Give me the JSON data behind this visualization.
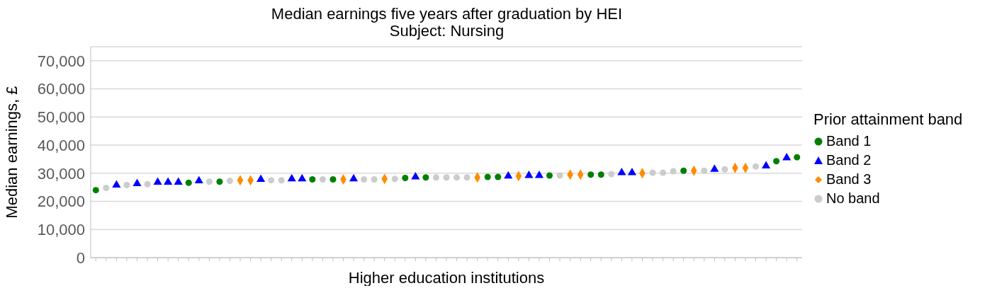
{
  "chart_data": {
    "type": "scatter",
    "title": "Median earnings five years after graduation by HEI",
    "subtitle": "Subject: Nursing",
    "xlabel": "Higher education institutions",
    "ylabel": "Median earnings, £",
    "legend_title": "Prior attainment band",
    "legend": "right",
    "grid": "y",
    "ylim": [
      0,
      75000
    ],
    "yticks": [
      {
        "value": 0,
        "label": "0"
      },
      {
        "value": 10000,
        "label": "10,000"
      },
      {
        "value": 20000,
        "label": "20,000"
      },
      {
        "value": 30000,
        "label": "30,000"
      },
      {
        "value": 40000,
        "label": "40,000"
      },
      {
        "value": 50000,
        "label": "50,000"
      },
      {
        "value": 60000,
        "label": "60,000"
      },
      {
        "value": 70000,
        "label": "70,000"
      }
    ],
    "categories": [
      null,
      null,
      null,
      null,
      null,
      null,
      null,
      null,
      null,
      null,
      null,
      null,
      null,
      null,
      null,
      null,
      null,
      null,
      null,
      null,
      null,
      null,
      null,
      null,
      null,
      null,
      null,
      null,
      null,
      null,
      null,
      null,
      null,
      null,
      null,
      null,
      null,
      null,
      null,
      null,
      null,
      null,
      null,
      null,
      null,
      null,
      null,
      null,
      null,
      null,
      null,
      null,
      null,
      null,
      null,
      null,
      null,
      null,
      null,
      null,
      null,
      null,
      null,
      null,
      null,
      null,
      null,
      null,
      null
    ],
    "series": [
      {
        "name": "Band 1",
        "color": "#008000",
        "marker": "circle",
        "values": [
          24000,
          null,
          null,
          null,
          null,
          null,
          null,
          null,
          null,
          26600,
          null,
          null,
          27000,
          null,
          null,
          null,
          null,
          null,
          null,
          null,
          null,
          27800,
          null,
          27800,
          null,
          null,
          null,
          null,
          null,
          null,
          28300,
          null,
          28500,
          null,
          null,
          null,
          null,
          null,
          28700,
          28700,
          null,
          null,
          null,
          null,
          29200,
          null,
          null,
          null,
          29500,
          29500,
          null,
          null,
          null,
          null,
          null,
          null,
          null,
          30900,
          null,
          null,
          null,
          null,
          null,
          null,
          null,
          null,
          34300,
          null,
          35700
        ]
      },
      {
        "name": "Band 2",
        "color": "#0000ff",
        "marker": "triangle",
        "values": [
          null,
          null,
          25800,
          null,
          26300,
          null,
          26800,
          26800,
          26800,
          null,
          27300,
          null,
          null,
          null,
          null,
          null,
          27800,
          null,
          null,
          28000,
          28000,
          null,
          null,
          null,
          null,
          28000,
          null,
          null,
          null,
          null,
          null,
          28700,
          null,
          null,
          null,
          null,
          null,
          null,
          null,
          null,
          29000,
          null,
          29200,
          29200,
          null,
          null,
          null,
          null,
          null,
          null,
          null,
          30200,
          30200,
          null,
          null,
          null,
          null,
          null,
          null,
          null,
          31400,
          null,
          null,
          null,
          null,
          32600,
          null,
          35500,
          null
        ]
      },
      {
        "name": "Band 3",
        "color": "#ff8c00",
        "marker": "diamond",
        "values": [
          null,
          null,
          null,
          null,
          null,
          null,
          null,
          null,
          null,
          null,
          null,
          null,
          null,
          null,
          27500,
          27500,
          null,
          null,
          null,
          null,
          null,
          null,
          null,
          null,
          27800,
          null,
          null,
          null,
          28000,
          null,
          null,
          null,
          null,
          null,
          null,
          null,
          null,
          28500,
          null,
          null,
          null,
          29000,
          null,
          null,
          null,
          null,
          29500,
          29500,
          null,
          null,
          null,
          null,
          null,
          30000,
          null,
          null,
          null,
          null,
          30900,
          null,
          null,
          null,
          31900,
          31900,
          null,
          null,
          null,
          null,
          null
        ]
      },
      {
        "name": "No band",
        "color": "#cccccc",
        "marker": "circle",
        "values": [
          null,
          24800,
          null,
          25800,
          null,
          26100,
          null,
          null,
          null,
          null,
          null,
          27000,
          null,
          27300,
          null,
          null,
          null,
          27500,
          27500,
          null,
          null,
          null,
          27800,
          null,
          null,
          null,
          27800,
          27800,
          null,
          28000,
          null,
          null,
          null,
          28500,
          28500,
          28500,
          28500,
          null,
          null,
          null,
          null,
          null,
          null,
          null,
          null,
          29200,
          null,
          null,
          null,
          null,
          29700,
          null,
          null,
          null,
          30200,
          30200,
          30700,
          null,
          null,
          30900,
          null,
          31400,
          null,
          null,
          32400,
          null,
          null,
          null,
          null
        ]
      }
    ]
  }
}
